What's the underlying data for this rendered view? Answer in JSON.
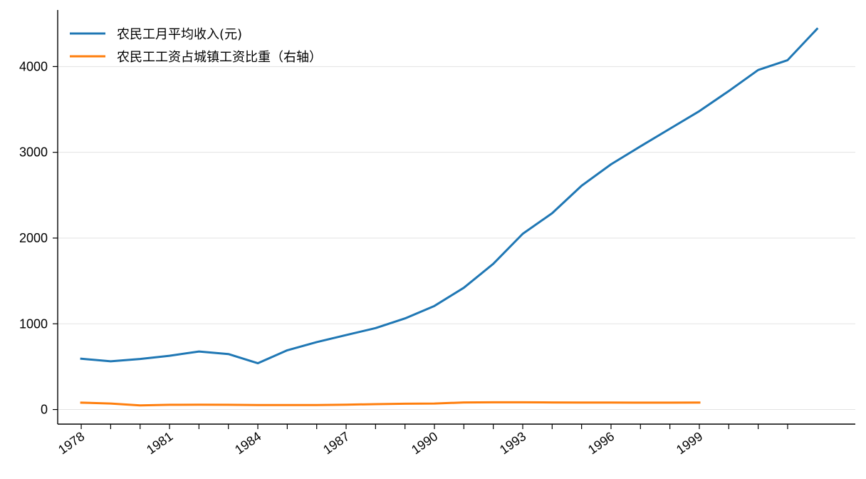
{
  "chart_data": {
    "type": "line",
    "title": "",
    "xlabel": "",
    "ylabel": "",
    "x": [
      1978,
      1979,
      1980,
      1981,
      1982,
      1983,
      1984,
      1985,
      1986,
      1987,
      1988,
      1989,
      1990,
      1991,
      1992,
      1993,
      1994,
      1995,
      1996,
      1997,
      1998,
      1999,
      2000,
      2001,
      2002,
      2003
    ],
    "xlim": [
      1977.2,
      2004.3
    ],
    "ylim": [
      -170,
      4660
    ],
    "yticks": [
      0,
      1000,
      2000,
      3000,
      4000
    ],
    "xticks": [
      1978,
      1981,
      1984,
      1987,
      1990,
      1993,
      1996,
      1999
    ],
    "minor_xticks_every": 1,
    "grid": "horizontal",
    "legend_position": "top-left",
    "series": [
      {
        "name": "农民工月平均收入(元)",
        "color": "#1f77b4",
        "values": [
          592,
          562,
          590,
          627,
          677,
          647,
          540,
          691,
          787,
          868,
          950,
          1063,
          1208,
          1420,
          1700,
          2050,
          2290,
          2610,
          2860,
          3070,
          3275,
          3480,
          3715,
          3960,
          4075,
          4440
        ]
      },
      {
        "name": "农民工工资占城镇工资比重（右轴）",
        "color": "#ff7f0e",
        "values": [
          80,
          70,
          48,
          55,
          56,
          55,
          53,
          52,
          52,
          57,
          63,
          68,
          70,
          83,
          84,
          84,
          83,
          82,
          81,
          80,
          80,
          81,
          null,
          null,
          null,
          null
        ]
      }
    ]
  }
}
